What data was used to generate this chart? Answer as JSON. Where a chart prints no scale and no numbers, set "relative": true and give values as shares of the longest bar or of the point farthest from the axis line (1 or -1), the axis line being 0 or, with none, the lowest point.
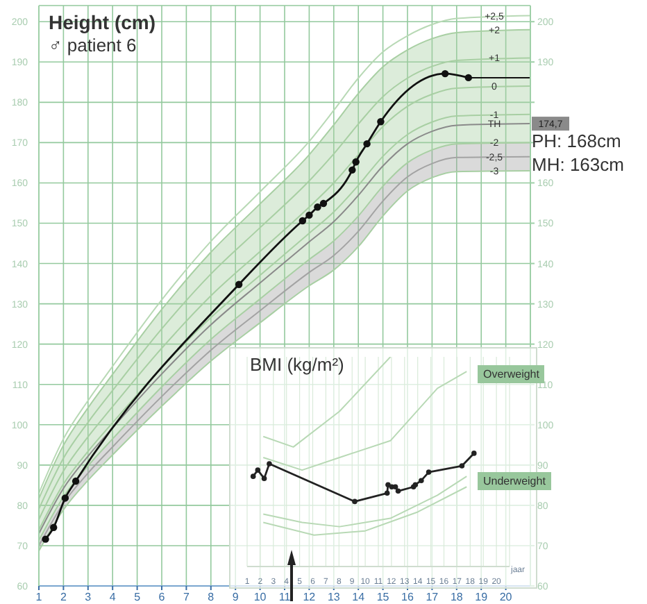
{
  "chart_data": [
    {
      "type": "line",
      "title": "Height (cm)",
      "subtitle": "♂ patient 6",
      "x": [
        1,
        2,
        3,
        4,
        6,
        8,
        10,
        12,
        13,
        14,
        15,
        16,
        17,
        18,
        21
      ],
      "xlim": [
        1,
        21
      ],
      "xticks": [
        1,
        2,
        3,
        4,
        5,
        6,
        7,
        8,
        9,
        10,
        11,
        12,
        13,
        14,
        15,
        16,
        17,
        18,
        19,
        20
      ],
      "ylim": [
        60,
        204
      ],
      "yticks": [
        60,
        70,
        80,
        90,
        100,
        110,
        120,
        130,
        140,
        150,
        160,
        170,
        180,
        190,
        200
      ],
      "y2lim": [
        60,
        204
      ],
      "y2ticks": [
        60,
        70,
        80,
        90,
        100,
        110,
        120,
        130,
        140,
        150,
        160,
        {
          "value": 170,
          "label": null
        },
        {
          "value": 180,
          "label": null
        },
        190,
        200
      ],
      "grid": true,
      "marker": "none",
      "series": [
        {
          "name": "+2,5",
          "color": "#b8d9b5",
          "values": [
            83.0,
            96.5,
            106,
            114.5,
            131,
            145.5,
            157.8,
            170.3,
            178,
            186,
            192.5,
            196.5,
            199.3,
            200.8,
            201.5
          ]
        },
        {
          "name": "+2",
          "color": "#a8cfa3",
          "values": [
            81.7,
            94.9,
            104.2,
            112.5,
            128.6,
            142.8,
            154.8,
            167,
            174.4,
            182.2,
            188.8,
            193,
            195.8,
            197.3,
            198
          ]
        },
        {
          "name": "+1",
          "color": "#a8cfa3",
          "values": [
            79.1,
            91.7,
            100.6,
            108.5,
            123.8,
            137.4,
            148.9,
            160.5,
            167.2,
            174.6,
            181.4,
            186,
            188.9,
            190.4,
            191
          ]
        },
        {
          "name": "0",
          "color": "#a8cfa3",
          "values": [
            76.5,
            88.5,
            97,
            104.5,
            119,
            132,
            143,
            154,
            160,
            167,
            174,
            179,
            182,
            183.5,
            184
          ],
          "lower": [
            71.3,
            82.1,
            89.8,
            96.5,
            109.4,
            121.2,
            131.2,
            141,
            145.6,
            151.8,
            159.2,
            165,
            168.2,
            169.7,
            170
          ],
          "upper": [
            81.7,
            94.9,
            104.2,
            112.5,
            128.6,
            142.8,
            154.8,
            167,
            174.4,
            182.2,
            188.8,
            193,
            195.8,
            197.3,
            198
          ]
        },
        {
          "name": "-1",
          "color": "#a8cfa3",
          "values": [
            73.9,
            85.3,
            93.4,
            100.5,
            114.2,
            126.6,
            137.1,
            147.5,
            152.8,
            159.4,
            166.6,
            172,
            175.1,
            176.6,
            177
          ]
        },
        {
          "name": "TH",
          "color": "#8a8a8a",
          "values": [
            73.0,
            84.2,
            92.2,
            99.2,
            112.6,
            124.8,
            135.2,
            145.4,
            150.4,
            156.9,
            164.2,
            169.7,
            172.8,
            174.3,
            174.7
          ]
        },
        {
          "name": "-2",
          "color": "#a8cfa3",
          "values": [
            71.3,
            82.1,
            89.8,
            96.5,
            109.4,
            121.2,
            131.2,
            141,
            145.6,
            151.8,
            159.2,
            165,
            168.2,
            169.7,
            170
          ]
        },
        {
          "name": "-2,5",
          "color": "#a3a3a3",
          "values": [
            70,
            80.5,
            88,
            94.5,
            107,
            118.5,
            128.3,
            137.8,
            142,
            148,
            155.5,
            161.5,
            164.8,
            166.3,
            166.5
          ],
          "lower": [
            68.7,
            78.9,
            86.2,
            92.5,
            104.6,
            115.8,
            125.3,
            134.5,
            138.4,
            144.2,
            151.8,
            158,
            161.3,
            162.8,
            163
          ],
          "upper": [
            71.3,
            82.1,
            89.8,
            96.5,
            109.4,
            121.2,
            131.2,
            141,
            145.6,
            151.8,
            159.2,
            165,
            168.2,
            169.7,
            170
          ]
        },
        {
          "name": "-3",
          "color": "#a8cfa3",
          "values": [
            68.7,
            78.9,
            86.2,
            92.5,
            104.6,
            115.8,
            125.3,
            134.5,
            138.4,
            144.2,
            151.8,
            158,
            161.3,
            162.8,
            163
          ]
        },
        {
          "color": "#111111",
          "marker": "circle",
          "x": [
            1.27,
            1.6,
            2.07,
            2.5,
            9.14,
            11.73,
            12.0,
            12.34,
            12.58,
            13.75,
            13.9,
            14.35,
            14.91,
            17.53,
            18.48
          ],
          "values": [
            71.6,
            74.5,
            81.8,
            86,
            134.8,
            150.6,
            152,
            154,
            154.9,
            163.2,
            165.2,
            169.7,
            175.2,
            187.1,
            186.1
          ]
        },
        {
          "color": "#111111",
          "x": [
            18.48,
            21
          ],
          "values": [
            186.1,
            186.1
          ]
        }
      ],
      "annotations": [
        {
          "text": "174,7",
          "x": 21,
          "y": 174.7
        },
        "PH: 168cm",
        "MH: 163cm"
      ]
    },
    {
      "type": "line",
      "title": "BMI (kg/m²)",
      "relative": true,
      "xlabel": "jaar",
      "xlim": [
        1,
        21
      ],
      "xticks": [
        1,
        2,
        3,
        4,
        5,
        6,
        7,
        8,
        9,
        10,
        11,
        12,
        13,
        14,
        15,
        16,
        17,
        18,
        19,
        20
      ],
      "tick_labels": "x",
      "grid": "x",
      "marker": "none",
      "series": [
        {
          "color": "#b8d9b5",
          "x": [
            2.23,
            5.19,
            8.04,
            11.92,
            15.5,
            17.73
          ],
          "values": [
            0.52,
            0.46,
            0.52,
            0.6,
            0.85,
            0.93
          ]
        },
        {
          "color": "#b8d9b5",
          "x": [
            2.23,
            5.19,
            8.04,
            11.92,
            15.5,
            17.73
          ],
          "values": [
            0.25,
            0.21,
            0.19,
            0.23,
            0.34,
            0.43
          ]
        },
        {
          "color": "#b8d9b5",
          "x": [
            2.23,
            4.52,
            8.04,
            11.92
          ],
          "values": [
            0.62,
            0.57,
            0.74,
            1
          ]
        },
        {
          "color": "#b8d9b5",
          "x": [
            2.23,
            6.1,
            10,
            14,
            17.73
          ],
          "values": [
            0.21,
            0.15,
            0.17,
            0.26,
            0.38
          ]
        },
        {
          "color": "#222222",
          "marker": "circle",
          "x": [
            1.46,
            1.81,
            2.3,
            2.69,
            9.2,
            11.67,
            11.74,
            12.02,
            12.3,
            12.51,
            13.68,
            13.82,
            14.27,
            14.84,
            17.37,
            18.29
          ],
          "values": [
            0.43,
            0.46,
            0.42,
            0.49,
            0.31,
            0.35,
            0.39,
            0.38,
            0.38,
            0.36,
            0.38,
            0.39,
            0.41,
            0.45,
            0.48,
            0.54
          ]
        }
      ],
      "annotations": [
        "Overweight",
        "Underweight"
      ]
    }
  ]
}
